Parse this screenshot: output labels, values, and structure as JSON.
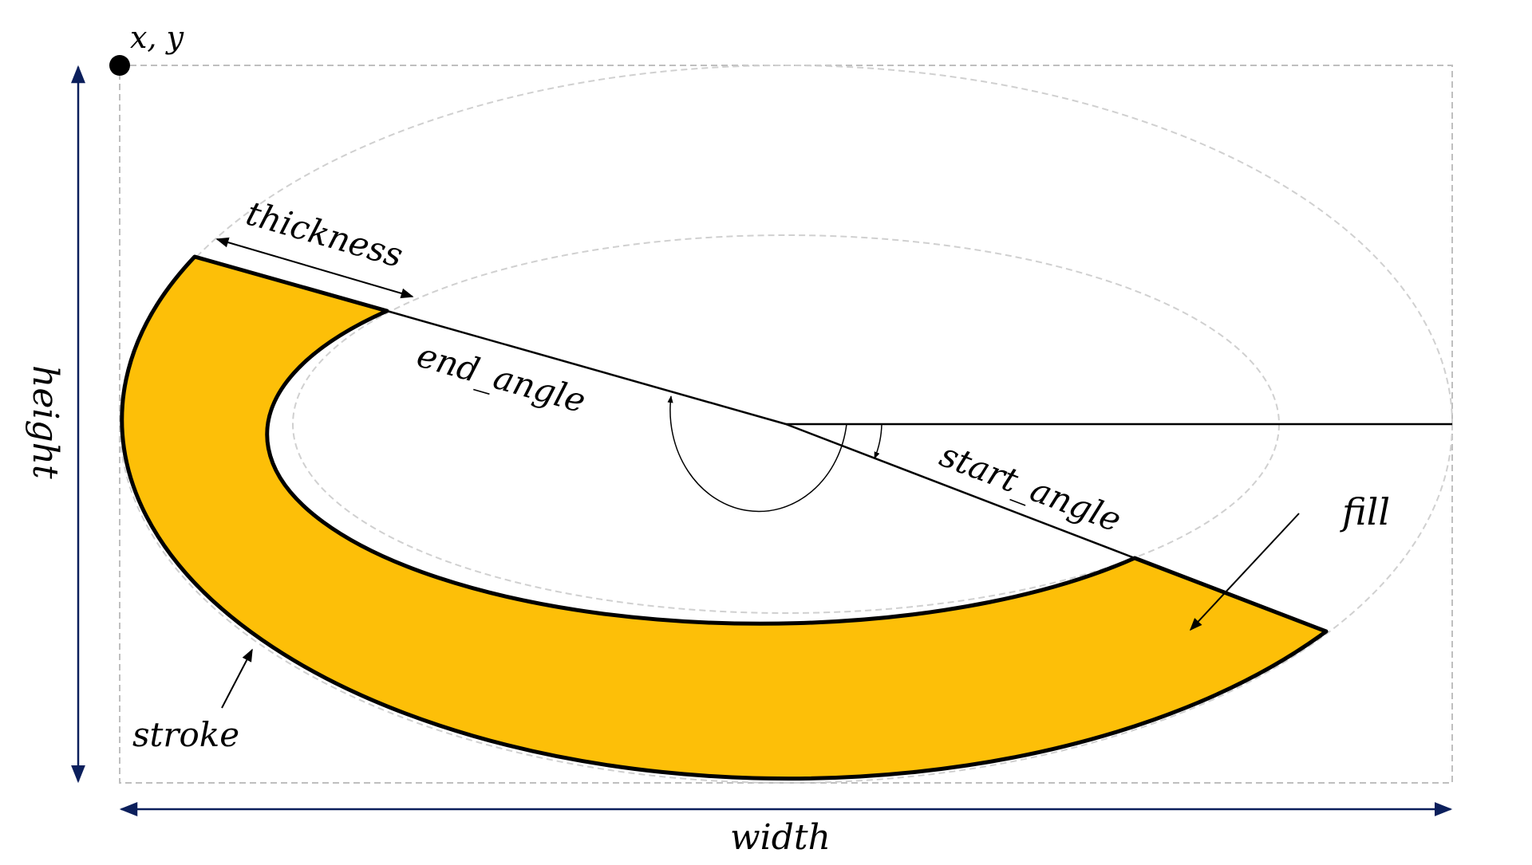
{
  "labels": {
    "origin": "x, y",
    "thickness": "thickness",
    "end_angle": "end_angle",
    "start_angle": "start_angle",
    "fill": "fill",
    "stroke": "stroke",
    "width": "width",
    "height": "height"
  },
  "colors": {
    "fill": "#FDBF08",
    "stroke": "#000000",
    "guide": "#BFBFBF",
    "dimension_arrow": "#0B1F5C",
    "background": "#FFFFFF"
  },
  "arc": {
    "start_angle_deg": 15,
    "end_angle_deg": 195,
    "thickness_fraction_of_radius": 0.26
  }
}
